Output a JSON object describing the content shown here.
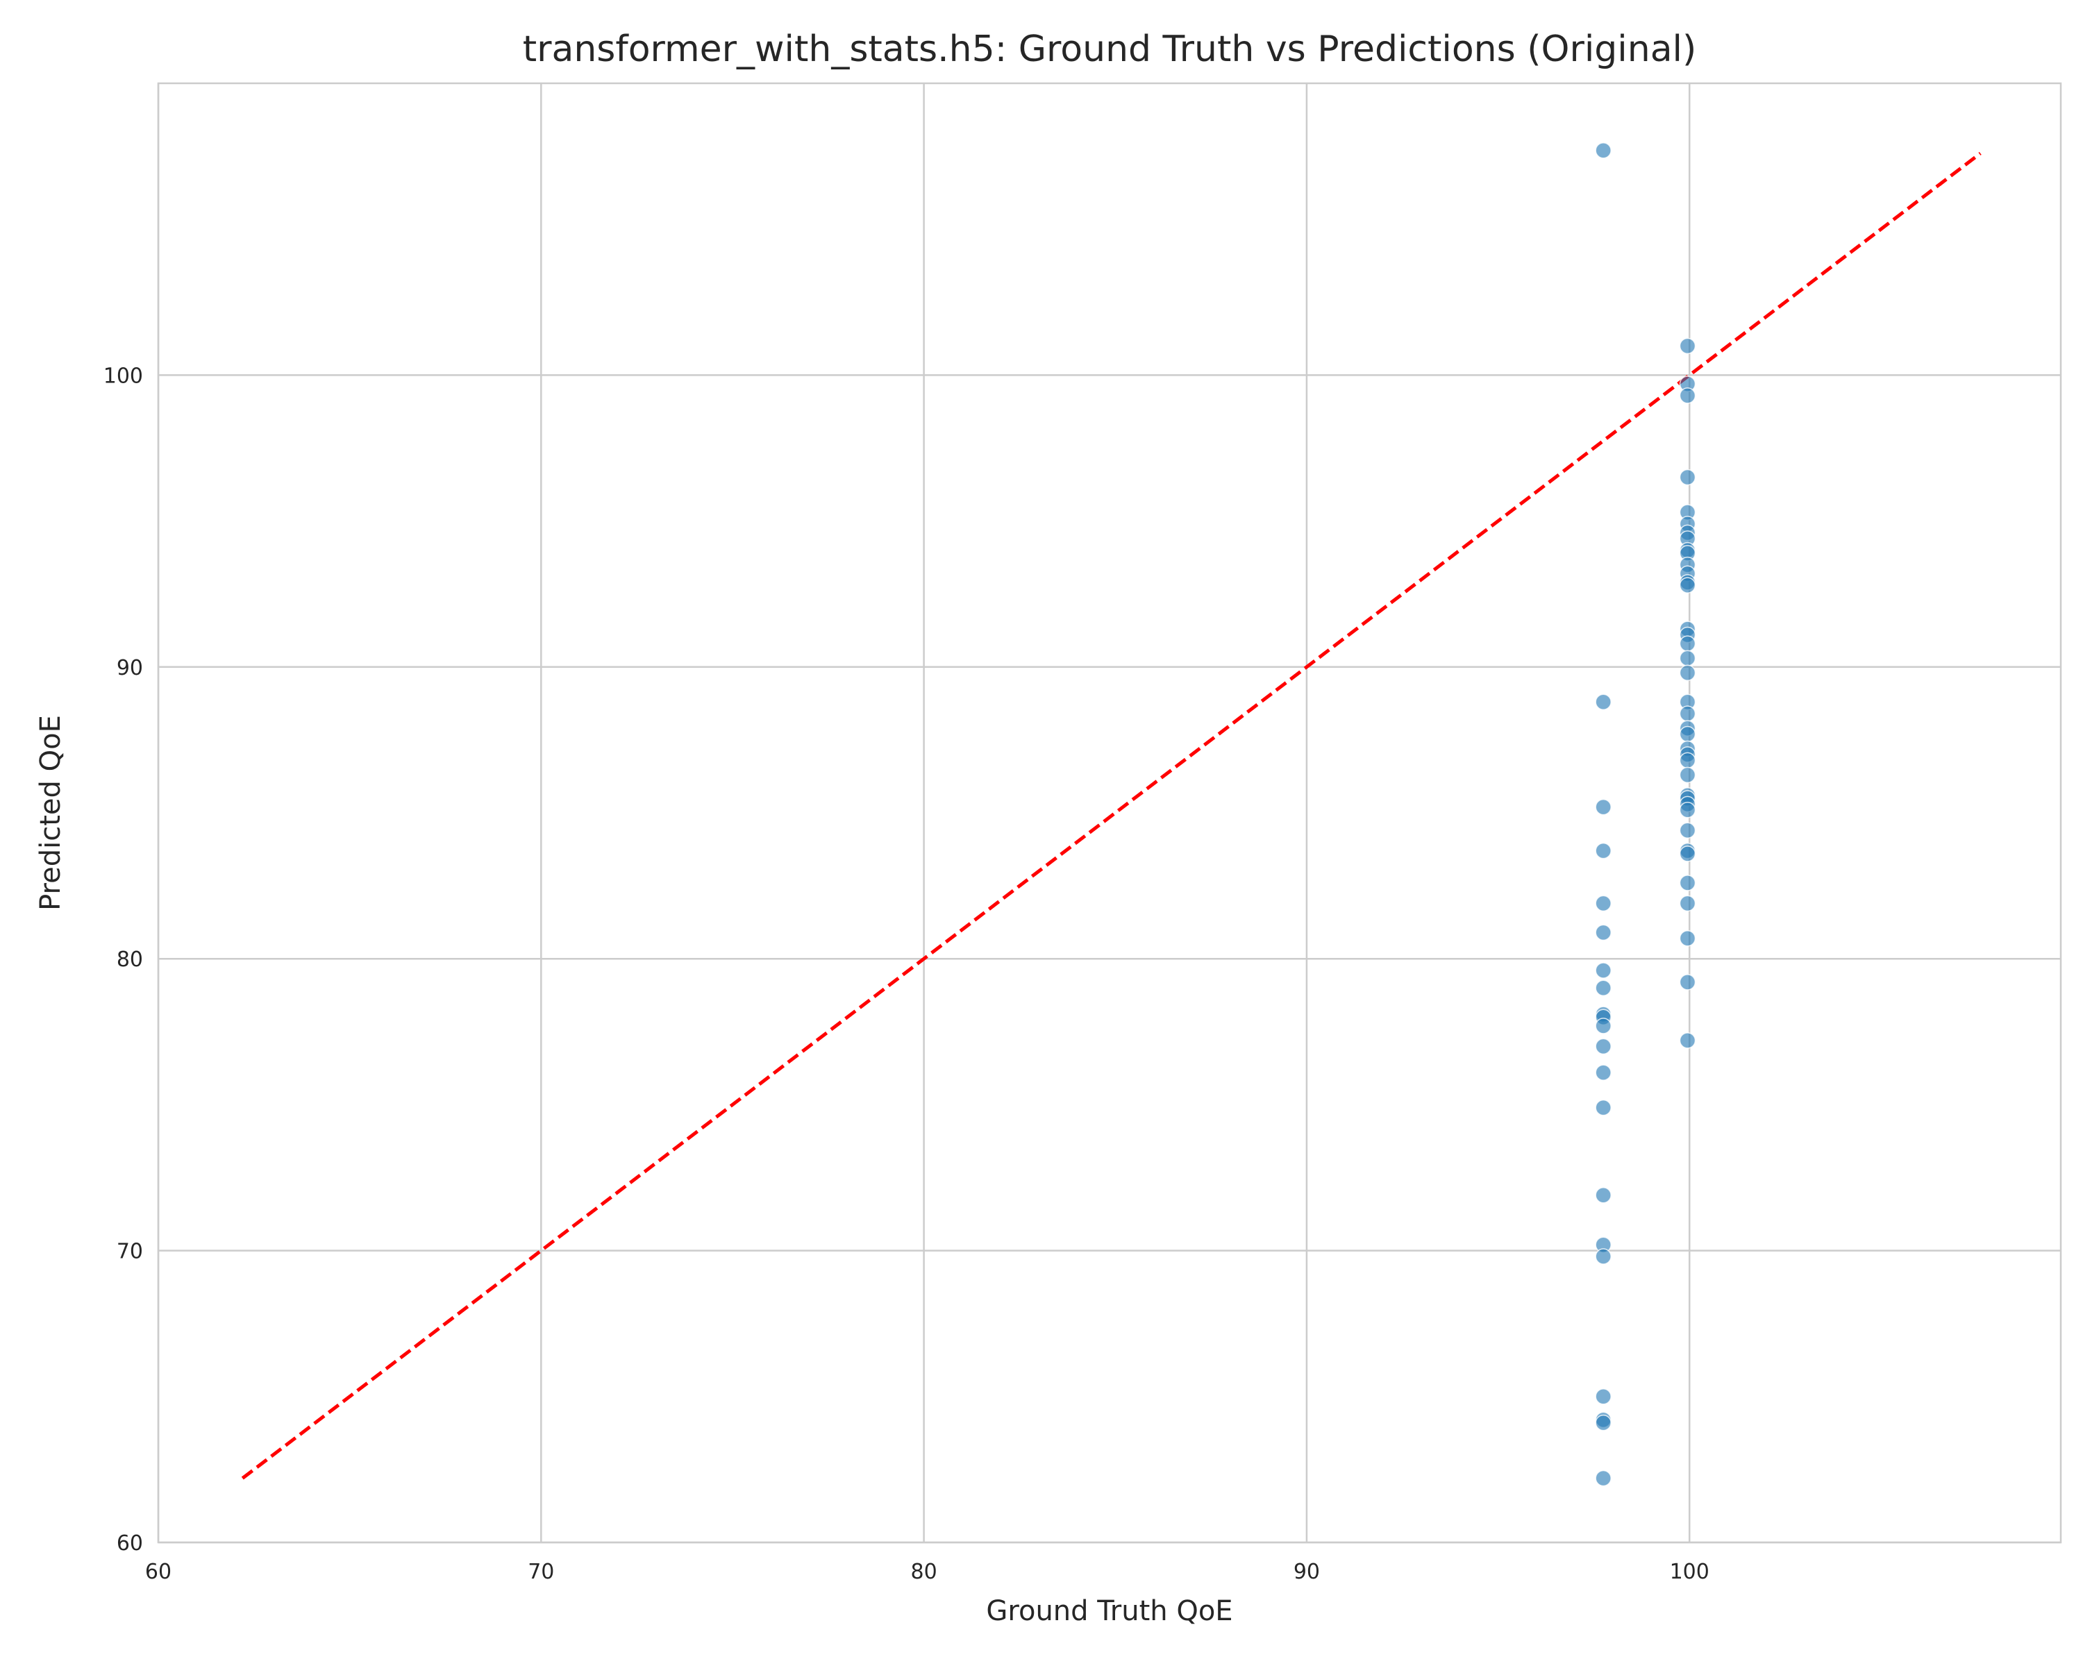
{
  "chart_data": {
    "type": "scatter",
    "title": "transformer_with_stats.h5: Ground Truth vs Predictions (Original)",
    "xlabel": "Ground Truth QoE",
    "ylabel": "Predicted QoE",
    "xlim": [
      60,
      109.7
    ],
    "ylim": [
      60,
      110
    ],
    "xticks": [
      60,
      70,
      80,
      90,
      100
    ],
    "yticks": [
      60,
      70,
      80,
      90,
      100
    ],
    "grid": true,
    "point_color": "#1f77b4",
    "reference_line": {
      "style": "dashed",
      "color": "#ff0000",
      "from": [
        62.2,
        62.2
      ],
      "to": [
        107.6,
        107.6
      ]
    },
    "points": [
      [
        97.75,
        107.7
      ],
      [
        97.75,
        88.8
      ],
      [
        97.75,
        85.2
      ],
      [
        97.75,
        83.7
      ],
      [
        97.75,
        81.9
      ],
      [
        97.75,
        80.9
      ],
      [
        97.75,
        79.6
      ],
      [
        97.75,
        79.0
      ],
      [
        97.75,
        78.1
      ],
      [
        97.75,
        78.0
      ],
      [
        97.75,
        77.7
      ],
      [
        97.75,
        77.0
      ],
      [
        97.75,
        76.1
      ],
      [
        97.75,
        74.9
      ],
      [
        97.75,
        71.9
      ],
      [
        97.75,
        70.2
      ],
      [
        97.75,
        69.8
      ],
      [
        97.75,
        65.0
      ],
      [
        97.75,
        64.2
      ],
      [
        97.75,
        64.1
      ],
      [
        97.75,
        62.2
      ],
      [
        99.95,
        101.0
      ],
      [
        99.95,
        99.7
      ],
      [
        99.95,
        99.3
      ],
      [
        99.95,
        96.5
      ],
      [
        99.95,
        95.3
      ],
      [
        99.95,
        94.9
      ],
      [
        99.95,
        94.6
      ],
      [
        99.95,
        94.4
      ],
      [
        99.95,
        94.0
      ],
      [
        99.95,
        93.9
      ],
      [
        99.95,
        93.5
      ],
      [
        99.95,
        93.2
      ],
      [
        99.95,
        92.9
      ],
      [
        99.95,
        92.8
      ],
      [
        99.95,
        91.3
      ],
      [
        99.95,
        91.1
      ],
      [
        99.95,
        90.8
      ],
      [
        99.95,
        90.3
      ],
      [
        99.95,
        89.8
      ],
      [
        99.95,
        88.8
      ],
      [
        99.95,
        88.4
      ],
      [
        99.95,
        87.9
      ],
      [
        99.95,
        87.7
      ],
      [
        99.95,
        87.2
      ],
      [
        99.95,
        87.0
      ],
      [
        99.95,
        86.8
      ],
      [
        99.95,
        86.3
      ],
      [
        99.95,
        85.6
      ],
      [
        99.95,
        85.5
      ],
      [
        99.95,
        85.3
      ],
      [
        99.95,
        85.1
      ],
      [
        99.95,
        84.4
      ],
      [
        99.95,
        83.7
      ],
      [
        99.95,
        83.6
      ],
      [
        99.95,
        82.6
      ],
      [
        99.95,
        81.9
      ],
      [
        99.95,
        80.7
      ],
      [
        99.95,
        79.2
      ],
      [
        99.95,
        77.2
      ]
    ]
  }
}
